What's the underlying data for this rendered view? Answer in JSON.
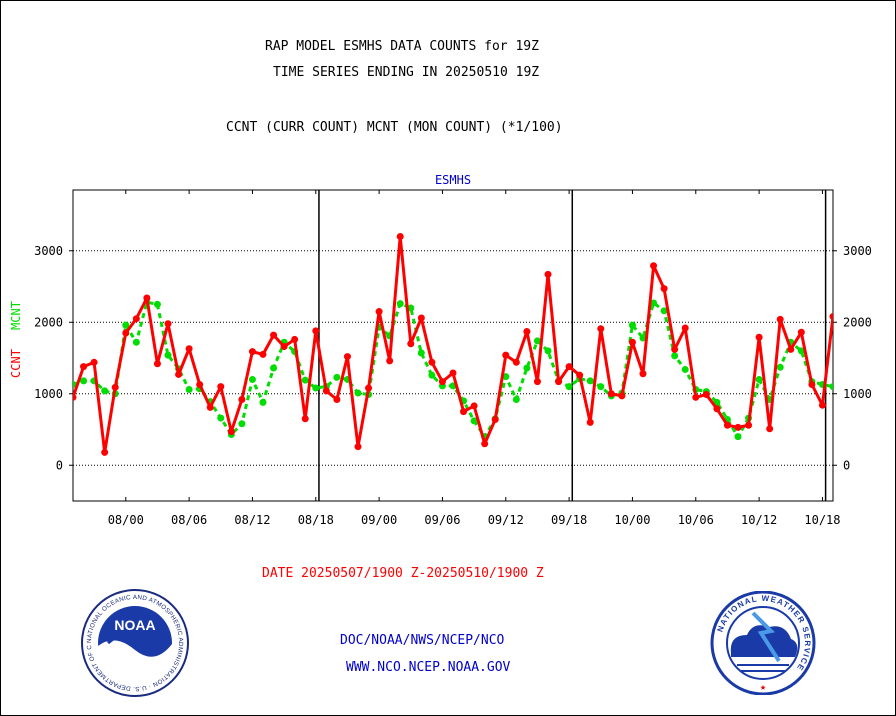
{
  "header": {
    "title_line1": "RAP MODEL ESMHS DATA COUNTS for 19Z",
    "title_line2": "TIME SERIES ENDING IN 20250510 19Z",
    "subtitle": "CCNT (CURR COUNT) MCNT (MON COUNT) (*1/100)"
  },
  "footer": {
    "date_range": "DATE 20250507/1900 Z-20250510/1900 Z",
    "link1": "DOC/NOAA/NWS/NCEP/NCO",
    "link2": "WWW.NCO.NCEP.NOAA.GOV"
  },
  "logos": {
    "noaa_text": "NOAA",
    "noaa_ring_text": "NATIONAL OCEANIC AND ATMOSPHERIC ADMINISTRATION · U.S. DEPARTMENT OF COMMERCE",
    "nws_ring_text": "NATIONAL WEATHER SERVICE"
  },
  "colors": {
    "ccnt": "#ff0000",
    "mcnt": "#00dd00",
    "panel_title": "#0000cc",
    "link": "#0000cc",
    "date": "#ff0000"
  },
  "chart_data": {
    "type": "line",
    "title": "ESMHS",
    "ylabel_ccnt": "CCNT",
    "ylabel_mcnt": "MCNT",
    "ylim": [
      -500,
      3850
    ],
    "yticks": [
      0,
      1000,
      2000,
      3000
    ],
    "ytick_labels": [
      "0",
      "1000",
      "2000",
      "3000"
    ],
    "xticks": [
      {
        "idx": 5,
        "label": "08/00"
      },
      {
        "idx": 11,
        "label": "08/06"
      },
      {
        "idx": 17,
        "label": "08/12"
      },
      {
        "idx": 23,
        "label": "08/18"
      },
      {
        "idx": 29,
        "label": "09/00"
      },
      {
        "idx": 35,
        "label": "09/06"
      },
      {
        "idx": 41,
        "label": "09/12"
      },
      {
        "idx": 47,
        "label": "09/18"
      },
      {
        "idx": 53,
        "label": "10/00"
      },
      {
        "idx": 59,
        "label": "10/06"
      },
      {
        "idx": 65,
        "label": "10/12"
      },
      {
        "idx": 71,
        "label": "10/18"
      }
    ],
    "day_boundaries_idx": [
      23.3,
      47.3,
      71.3
    ],
    "x_range_idx": [
      0,
      72
    ],
    "grid": true,
    "series": [
      {
        "name": "CCNT",
        "values": [
          950,
          1380,
          1440,
          180,
          1090,
          1850,
          2050,
          2340,
          1420,
          1980,
          1270,
          1630,
          1130,
          810,
          1100,
          470,
          920,
          1590,
          1550,
          1820,
          1660,
          1760,
          650,
          1880,
          1040,
          920,
          1520,
          260,
          1080,
          2150,
          1460,
          3200,
          1700,
          2060,
          1440,
          1170,
          1290,
          750,
          830,
          300,
          640,
          1540,
          1440,
          1870,
          1170,
          2670,
          1170,
          1380,
          1260,
          600,
          1910,
          1000,
          970,
          1720,
          1280,
          2790,
          2470,
          1620,
          1920,
          950,
          990,
          790,
          560,
          530,
          560,
          1790,
          510,
          2040,
          1620,
          1860,
          1130,
          840,
          2080
        ]
      },
      {
        "name": "MCNT",
        "values": [
          1130,
          1180,
          1180,
          1040,
          1000,
          1960,
          1720,
          2280,
          2250,
          1540,
          1350,
          1060,
          1070,
          890,
          660,
          430,
          580,
          1200,
          880,
          1360,
          1720,
          1590,
          1190,
          1080,
          1100,
          1230,
          1200,
          1010,
          990,
          1930,
          1810,
          2260,
          2200,
          1570,
          1260,
          1110,
          1110,
          900,
          620,
          400,
          650,
          1240,
          920,
          1360,
          1740,
          1600,
          1180,
          1100,
          1210,
          1180,
          1100,
          970,
          1010,
          1960,
          1780,
          2270,
          2160,
          1530,
          1340,
          1060,
          1030,
          880,
          640,
          400,
          660,
          1200,
          920,
          1370,
          1720,
          1600,
          1170,
          1130,
          1100
        ]
      }
    ]
  }
}
